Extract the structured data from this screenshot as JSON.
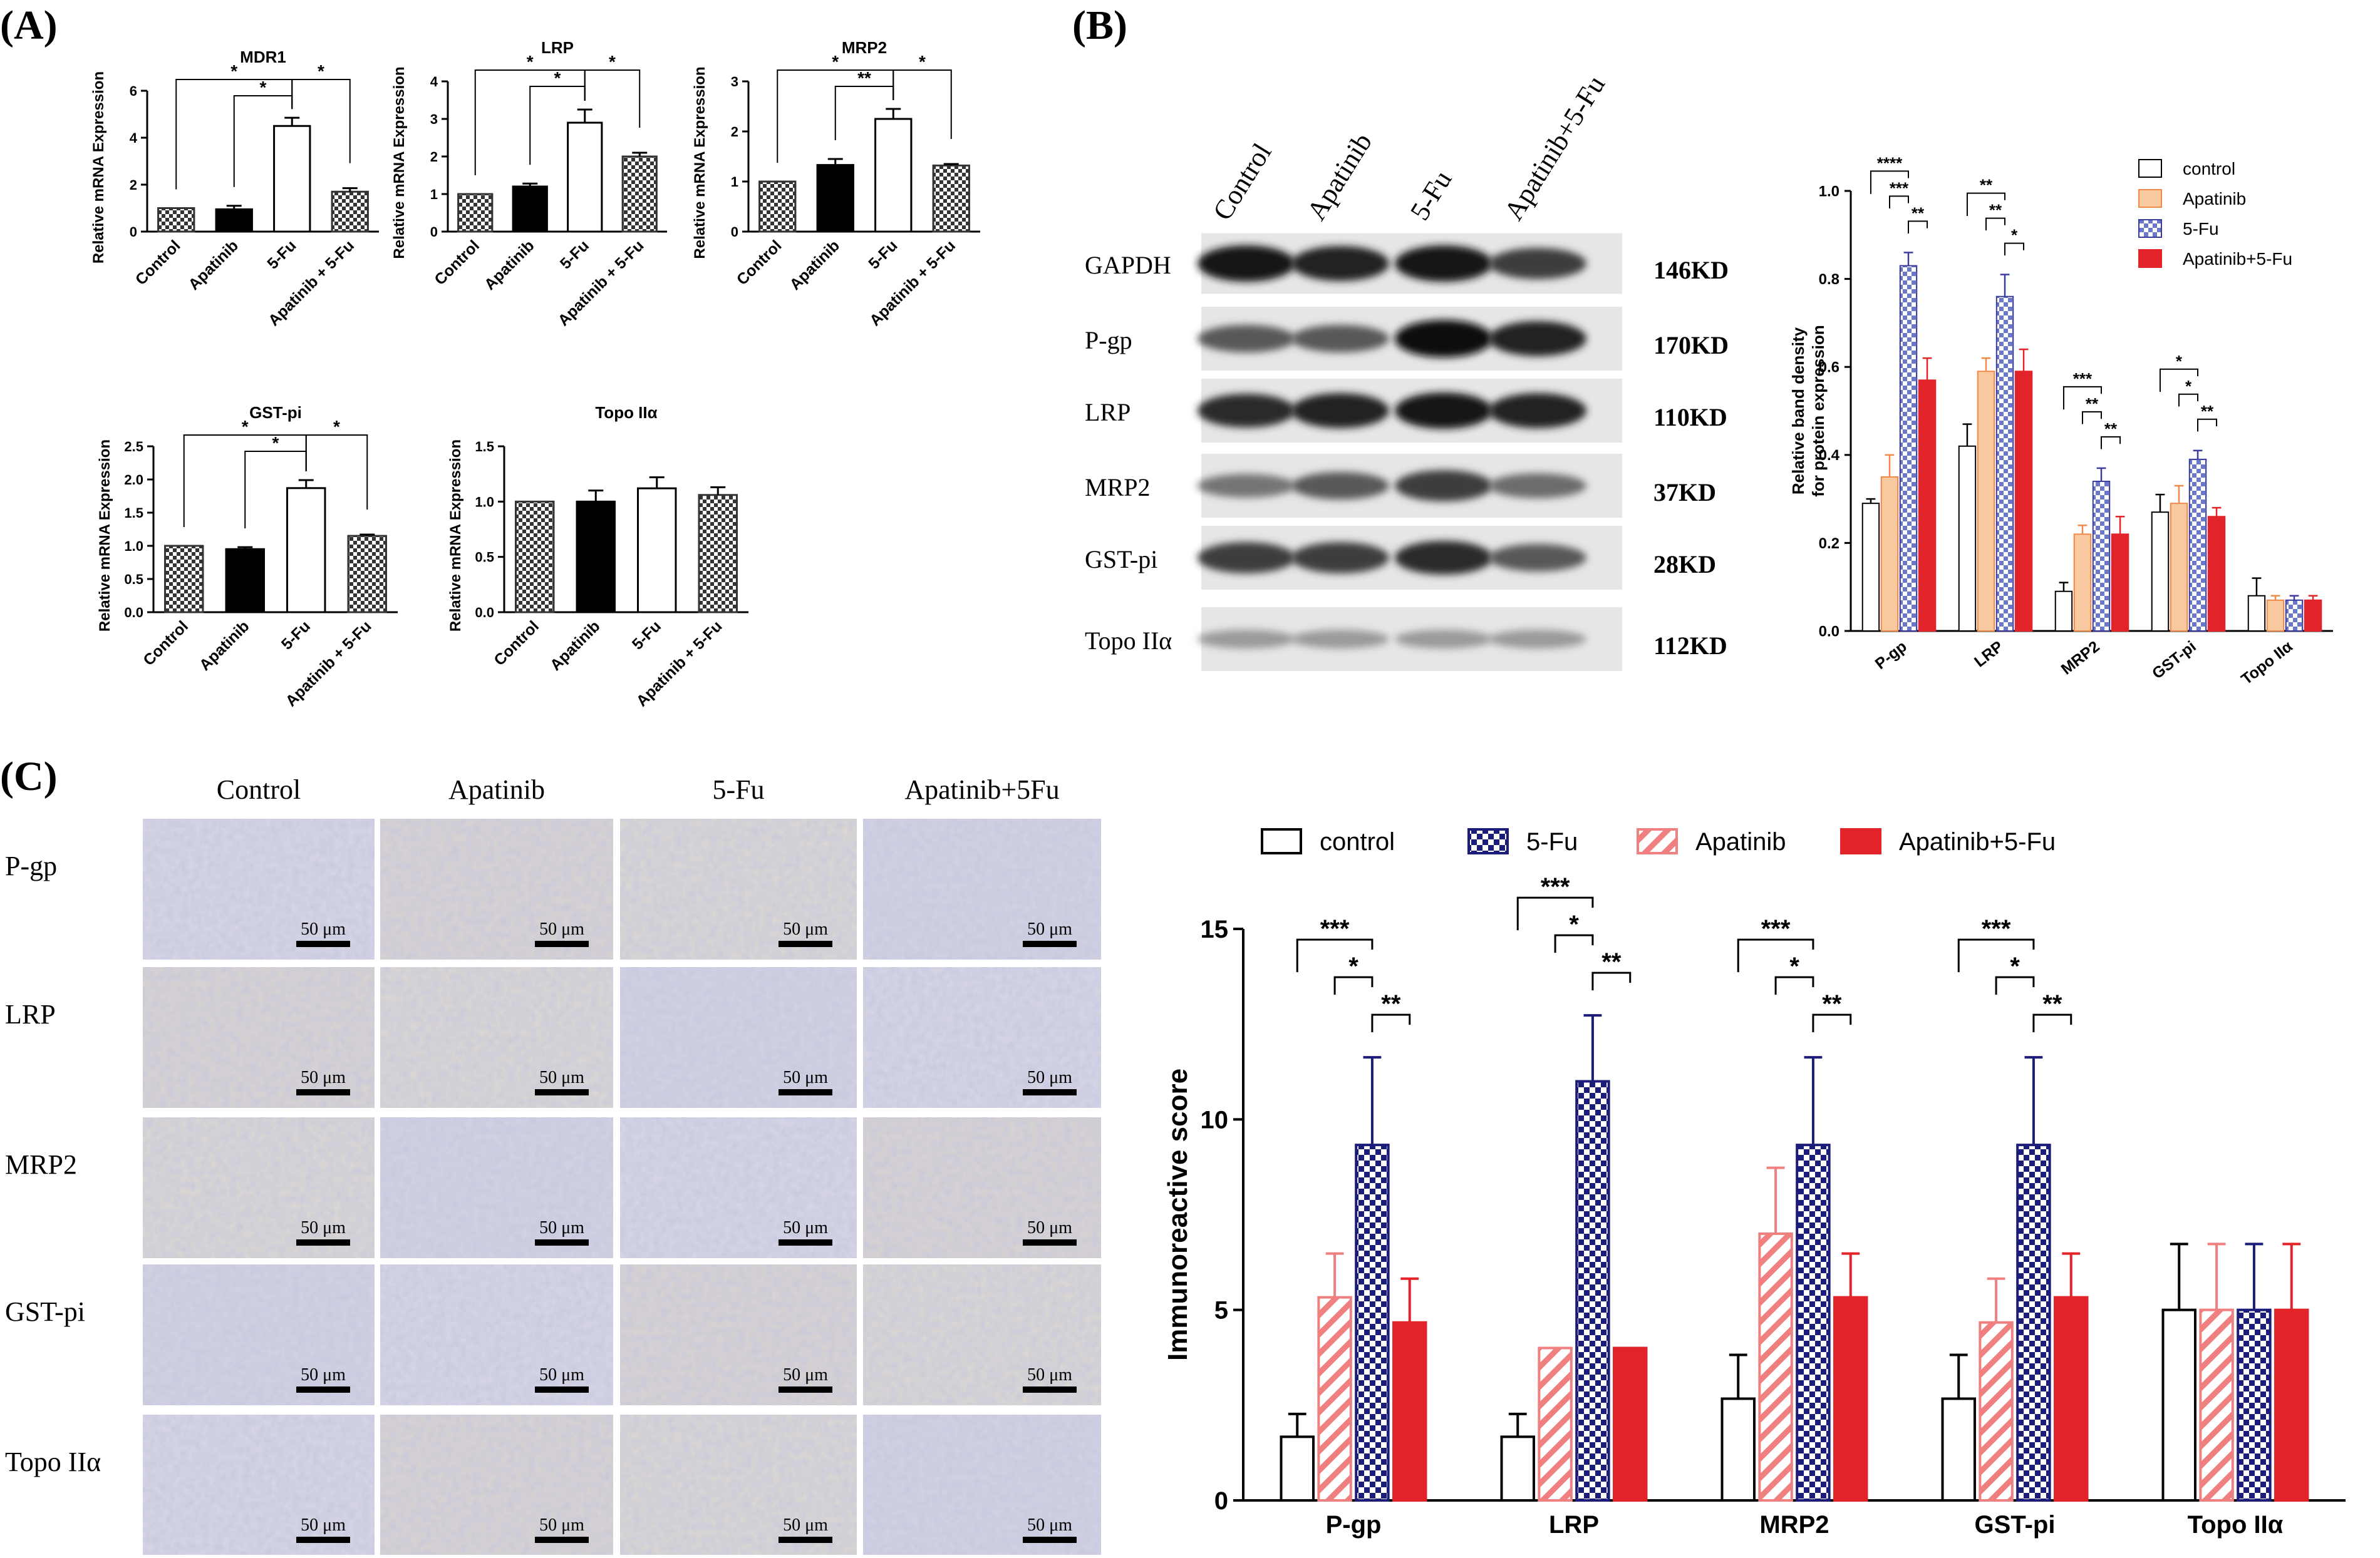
{
  "panels": {
    "A": {
      "label": "(A)"
    },
    "B": {
      "label": "(B)"
    },
    "C": {
      "label": "(C)"
    }
  },
  "colors": {
    "black": "#000000",
    "white": "#ffffff",
    "apatinib_b": "#f9c9a0",
    "apatinib_b_edge": "#f08a4b",
    "fu_blue": "#3b3b9e",
    "red": "#e3232a",
    "salmon": "#f08080",
    "navy": "#1c1c7a",
    "band": "#1a1a1a"
  },
  "chart_data": [
    {
      "id": "A-MDR1",
      "type": "bar",
      "title": "MDR1",
      "ylabel": "Relative mRNA Expression",
      "categories": [
        "Control",
        "Apatinib",
        "5-Fu",
        "Apatinib + 5-Fu"
      ],
      "values": [
        1.0,
        0.95,
        4.5,
        1.7
      ],
      "errors": [
        0.0,
        0.15,
        0.35,
        0.15
      ],
      "ylim": [
        0,
        6
      ],
      "yticks": [
        "0",
        "2",
        "4",
        "6"
      ],
      "ytick_values": [
        0,
        2,
        4,
        6
      ],
      "significance": [
        {
          "from": 0,
          "to": 2,
          "label": "*"
        },
        {
          "from": 1,
          "to": 2,
          "label": "*"
        },
        {
          "from": 2,
          "to": 3,
          "label": "*"
        }
      ]
    },
    {
      "id": "A-LRP",
      "type": "bar",
      "title": "LRP",
      "ylabel": "Relative mRNA Expression",
      "categories": [
        "Control",
        "Apatinib",
        "5-Fu",
        "Apatinib + 5-Fu"
      ],
      "values": [
        1.0,
        1.2,
        2.9,
        2.0
      ],
      "errors": [
        0.0,
        0.08,
        0.35,
        0.1
      ],
      "ylim": [
        0,
        4
      ],
      "yticks": [
        "0",
        "1",
        "2",
        "3",
        "4"
      ],
      "ytick_values": [
        0,
        1,
        2,
        3,
        4
      ],
      "significance": [
        {
          "from": 0,
          "to": 2,
          "label": "*"
        },
        {
          "from": 1,
          "to": 2,
          "label": "*"
        },
        {
          "from": 2,
          "to": 3,
          "label": "*"
        }
      ]
    },
    {
      "id": "A-MRP2",
      "type": "bar",
      "title": "MRP2",
      "ylabel": "Relative mRNA Expression",
      "categories": [
        "Control",
        "Apatinib",
        "5-Fu",
        "Apatinib + 5-Fu"
      ],
      "values": [
        1.0,
        1.33,
        2.25,
        1.32
      ],
      "errors": [
        0.0,
        0.12,
        0.2,
        0.03
      ],
      "ylim": [
        0,
        3
      ],
      "yticks": [
        "0",
        "1",
        "2",
        "3"
      ],
      "ytick_values": [
        0,
        1,
        2,
        3
      ],
      "significance": [
        {
          "from": 0,
          "to": 2,
          "label": "*"
        },
        {
          "from": 1,
          "to": 2,
          "label": "**"
        },
        {
          "from": 2,
          "to": 3,
          "label": "*"
        }
      ]
    },
    {
      "id": "A-GSTpi",
      "type": "bar",
      "title": "GST-pi",
      "ylabel": "Relative mRNA Expression",
      "categories": [
        "Control",
        "Apatinib",
        "5-Fu",
        "Apatinib + 5-Fu"
      ],
      "values": [
        1.0,
        0.95,
        1.87,
        1.15
      ],
      "errors": [
        0.0,
        0.03,
        0.12,
        0.02
      ],
      "ylim": [
        0,
        2.5
      ],
      "yticks": [
        "0.0",
        "0.5",
        "1.0",
        "1.5",
        "2.0",
        "2.5"
      ],
      "ytick_values": [
        0,
        0.5,
        1.0,
        1.5,
        2.0,
        2.5
      ],
      "significance": [
        {
          "from": 0,
          "to": 2,
          "label": "*"
        },
        {
          "from": 1,
          "to": 2,
          "label": "*"
        },
        {
          "from": 2,
          "to": 3,
          "label": "*"
        }
      ]
    },
    {
      "id": "A-TopoIIa",
      "type": "bar",
      "title": "Topo IIα",
      "ylabel": "Relative mRNA Expression",
      "categories": [
        "Control",
        "Apatinib",
        "5-Fu",
        "Apatinib + 5-Fu"
      ],
      "values": [
        1.0,
        1.0,
        1.12,
        1.06
      ],
      "errors": [
        0.0,
        0.1,
        0.1,
        0.07
      ],
      "ylim": [
        0,
        1.5
      ],
      "yticks": [
        "0.0",
        "0.5",
        "1.0",
        "1.5"
      ],
      "ytick_values": [
        0,
        0.5,
        1.0,
        1.5
      ],
      "significance": []
    },
    {
      "id": "B-band-density",
      "type": "bar",
      "ylabel_lines": [
        "Relative band density",
        "for protein expression"
      ],
      "categories": [
        "P-gp",
        "LRP",
        "MRP2",
        "GST-pi",
        "Topo IIα"
      ],
      "legend": [
        "control",
        "Apatinib",
        "5-Fu",
        "Apatinib+5-Fu"
      ],
      "series": [
        {
          "name": "control",
          "values": [
            0.29,
            0.42,
            0.09,
            0.27,
            0.08
          ],
          "errors": [
            0.01,
            0.05,
            0.02,
            0.04,
            0.04
          ]
        },
        {
          "name": "Apatinib",
          "values": [
            0.35,
            0.59,
            0.22,
            0.29,
            0.07
          ],
          "errors": [
            0.05,
            0.03,
            0.02,
            0.04,
            0.01
          ]
        },
        {
          "name": "5-Fu",
          "values": [
            0.83,
            0.76,
            0.34,
            0.39,
            0.07
          ],
          "errors": [
            0.03,
            0.05,
            0.03,
            0.02,
            0.01
          ]
        },
        {
          "name": "Apatinib+5-Fu",
          "values": [
            0.57,
            0.59,
            0.22,
            0.26,
            0.07
          ],
          "errors": [
            0.05,
            0.05,
            0.04,
            0.02,
            0.01
          ]
        }
      ],
      "ylim": [
        0,
        1.0
      ],
      "yticks": [
        "0.0",
        "0.2",
        "0.4",
        "0.6",
        "0.8",
        "1.0"
      ],
      "ytick_values": [
        0,
        0.2,
        0.4,
        0.6,
        0.8,
        1.0
      ],
      "significance": [
        {
          "group": 0,
          "brackets": [
            {
              "from": 0,
              "to": 2,
              "label": "****"
            },
            {
              "from": 1,
              "to": 2,
              "label": "***"
            },
            {
              "from": 2,
              "to": 3,
              "label": "**"
            }
          ]
        },
        {
          "group": 1,
          "brackets": [
            {
              "from": 0,
              "to": 2,
              "label": "**"
            },
            {
              "from": 1,
              "to": 2,
              "label": "**"
            },
            {
              "from": 2,
              "to": 3,
              "label": "*"
            }
          ]
        },
        {
          "group": 2,
          "brackets": [
            {
              "from": 0,
              "to": 2,
              "label": "***"
            },
            {
              "from": 1,
              "to": 2,
              "label": "**"
            },
            {
              "from": 2,
              "to": 3,
              "label": "**"
            }
          ]
        },
        {
          "group": 3,
          "brackets": [
            {
              "from": 0,
              "to": 2,
              "label": "*"
            },
            {
              "from": 1,
              "to": 2,
              "label": "*"
            },
            {
              "from": 2,
              "to": 3,
              "label": "**"
            }
          ]
        }
      ]
    },
    {
      "id": "C-immunoreactive",
      "type": "bar",
      "ylabel": "Immunoreactive score",
      "categories": [
        "P-gp",
        "LRP",
        "MRP2",
        "GST-pi",
        "Topo IIα"
      ],
      "legend": [
        "control",
        "5-Fu",
        "Apatinib",
        "Apatinib+5-Fu"
      ],
      "series": [
        {
          "name": "control",
          "values": [
            1.67,
            1.67,
            2.67,
            2.67,
            5.0
          ],
          "errors": [
            0.6,
            0.6,
            1.15,
            1.15,
            1.73
          ]
        },
        {
          "name": "Apatinib",
          "values": [
            5.33,
            4.0,
            7.0,
            4.67,
            5.0
          ],
          "errors": [
            1.15,
            0.0,
            1.73,
            1.15,
            1.73
          ]
        },
        {
          "name": "5-Fu",
          "values": [
            9.33,
            11.0,
            9.33,
            9.33,
            5.0
          ],
          "errors": [
            2.3,
            1.73,
            2.3,
            2.3,
            1.73
          ]
        },
        {
          "name": "Apatinib+5-Fu",
          "values": [
            4.67,
            4.0,
            5.33,
            5.33,
            5.0
          ],
          "errors": [
            1.15,
            0.0,
            1.15,
            1.15,
            1.73
          ]
        }
      ],
      "ylim": [
        0,
        15
      ],
      "yticks": [
        "0",
        "5",
        "10",
        "15"
      ],
      "ytick_values": [
        0,
        5,
        10,
        15
      ],
      "significance": [
        {
          "group": 0,
          "brackets": [
            {
              "from": 0,
              "to": 2,
              "label": "***"
            },
            {
              "from": 1,
              "to": 2,
              "label": "*"
            },
            {
              "from": 2,
              "to": 3,
              "label": "**"
            }
          ]
        },
        {
          "group": 1,
          "brackets": [
            {
              "from": 0,
              "to": 2,
              "label": "***"
            },
            {
              "from": 1,
              "to": 2,
              "label": "*"
            },
            {
              "from": 2,
              "to": 3,
              "label": "**"
            }
          ]
        },
        {
          "group": 2,
          "brackets": [
            {
              "from": 0,
              "to": 2,
              "label": "***"
            },
            {
              "from": 1,
              "to": 2,
              "label": "*"
            },
            {
              "from": 2,
              "to": 3,
              "label": "**"
            }
          ]
        },
        {
          "group": 3,
          "brackets": [
            {
              "from": 0,
              "to": 2,
              "label": "***"
            },
            {
              "from": 1,
              "to": 2,
              "label": "*"
            },
            {
              "from": 2,
              "to": 3,
              "label": "**"
            }
          ]
        }
      ]
    }
  ],
  "western": {
    "lanes": [
      "Control",
      "Apatinib",
      "5-Fu",
      "Apatinib+5-Fu"
    ],
    "rows": [
      {
        "name": "GAPDH",
        "kd": "146KD",
        "intensity": [
          0.95,
          0.9,
          0.95,
          0.75
        ]
      },
      {
        "name": "P-gp",
        "kd": "170KD",
        "intensity": [
          0.6,
          0.6,
          1.0,
          0.9
        ]
      },
      {
        "name": "LRP",
        "kd": "110KD",
        "intensity": [
          0.85,
          0.9,
          0.95,
          0.9
        ]
      },
      {
        "name": "MRP2",
        "kd": "37KD",
        "intensity": [
          0.45,
          0.6,
          0.75,
          0.5
        ]
      },
      {
        "name": "GST-pi",
        "kd": "28KD",
        "intensity": [
          0.75,
          0.75,
          0.85,
          0.6
        ]
      },
      {
        "name": "Topo IIα",
        "kd": "112KD",
        "intensity": [
          0.25,
          0.25,
          0.25,
          0.25
        ]
      }
    ]
  },
  "ihc": {
    "columns": [
      "Control",
      "Apatinib",
      "5-Fu",
      "Apatinib+5Fu"
    ],
    "rows": [
      "P-gp",
      "LRP",
      "MRP2",
      "GST-pi",
      "Topo IIα"
    ],
    "scale_label": "50 μm"
  }
}
